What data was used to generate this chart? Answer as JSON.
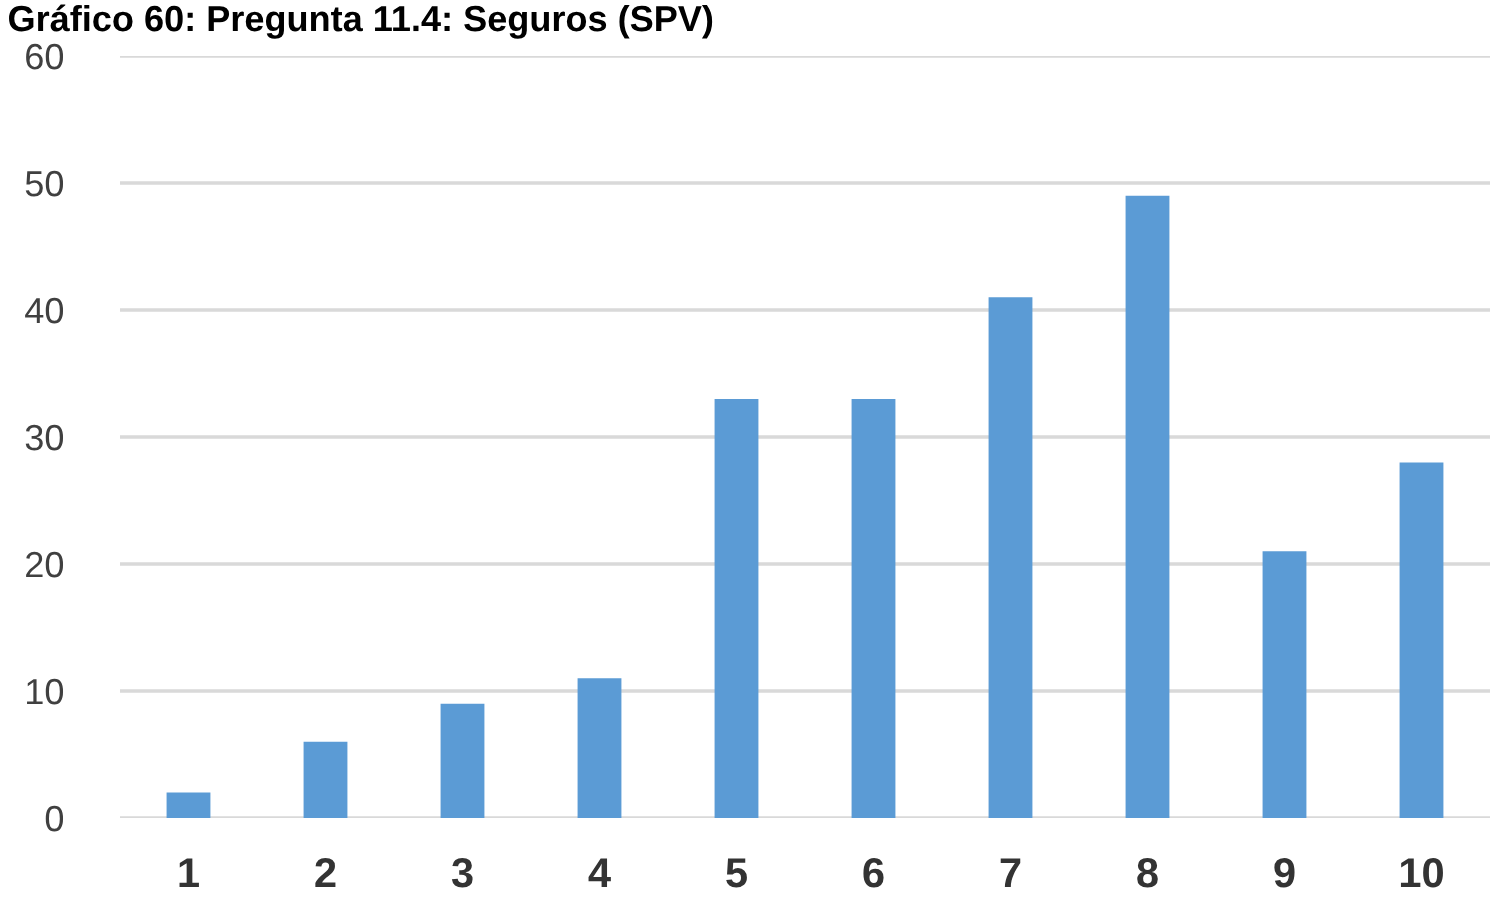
{
  "chart_data": {
    "type": "bar",
    "title": "Gráfico 60: Pregunta 11.4: Seguros (SPV)",
    "categories": [
      "1",
      "2",
      "3",
      "4",
      "5",
      "6",
      "7",
      "8",
      "9",
      "10"
    ],
    "values": [
      2,
      6,
      9,
      11,
      33,
      33,
      41,
      49,
      21,
      28
    ],
    "color": "#5b9bd5",
    "ylim": [
      0,
      60
    ],
    "yticks": [
      0,
      10,
      20,
      30,
      40,
      50,
      60
    ],
    "grid": "y"
  }
}
